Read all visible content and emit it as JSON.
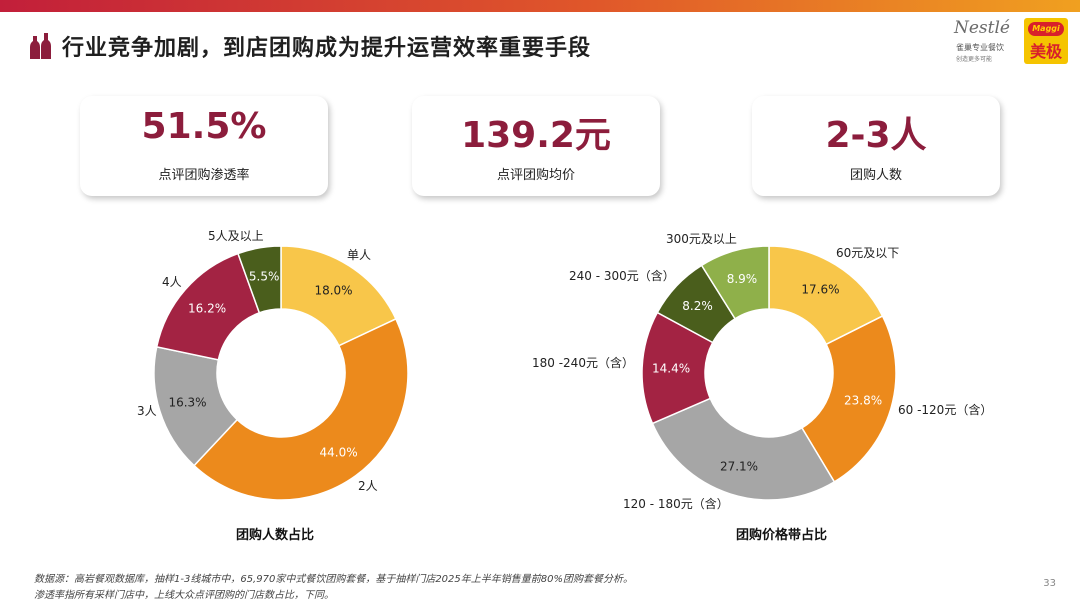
{
  "title": "行业竞争加剧，到店团购成为提升运营效率重要手段",
  "logos": {
    "nestle_brand": "Nestlé",
    "nestle_sub": "雀巢专业餐饮",
    "nestle_sub2": "创造更多可能",
    "maggi_badge": "Maggi",
    "maggi_name": "美极"
  },
  "stats": [
    {
      "value": "51.5%",
      "label": "点评团购渗透率"
    },
    {
      "value": "139.2元",
      "label": "点评团购均价"
    },
    {
      "value": "2-3人",
      "label": "团购人数"
    }
  ],
  "chart_data": [
    {
      "type": "pie",
      "donut": true,
      "caption": "团购人数占比",
      "categories": [
        "单人",
        "2人",
        "3人",
        "4人",
        "5人及以上"
      ],
      "values": [
        18.0,
        44.0,
        16.3,
        16.2,
        5.5
      ],
      "value_labels": [
        "18.0%",
        "44.0%",
        "16.3%",
        "16.2%",
        "5.5%"
      ],
      "colors": [
        "#f8c64a",
        "#ec8a1c",
        "#a6a6a6",
        "#a32343",
        "#4a5e1c"
      ]
    },
    {
      "type": "pie",
      "donut": true,
      "caption": "团购价格带占比",
      "categories": [
        "60元及以下",
        "60 -120元（含）",
        "120 - 180元（含）",
        "180 -240元（含）",
        "240 - 300元（含）",
        "300元及以上"
      ],
      "values": [
        17.6,
        23.8,
        27.1,
        14.4,
        8.2,
        8.9
      ],
      "value_labels": [
        "17.6%",
        "23.8%",
        "27.1%",
        "14.4%",
        "8.2%",
        "8.9%"
      ],
      "colors": [
        "#f8c64a",
        "#ec8a1c",
        "#a6a6a6",
        "#a32343",
        "#4a5e1c",
        "#8fb04a"
      ]
    }
  ],
  "footnote": {
    "line1": "数据源：高岩餐观数据库，抽样1-3线城市中，65,970家中式餐饮团购套餐，基于抽样门店2025年上半年销售量前80%团购套餐分析。",
    "line2": "渗透率指所有采样门店中，上线大众点评团购的门店数占比，下同。"
  },
  "page_number": "33"
}
